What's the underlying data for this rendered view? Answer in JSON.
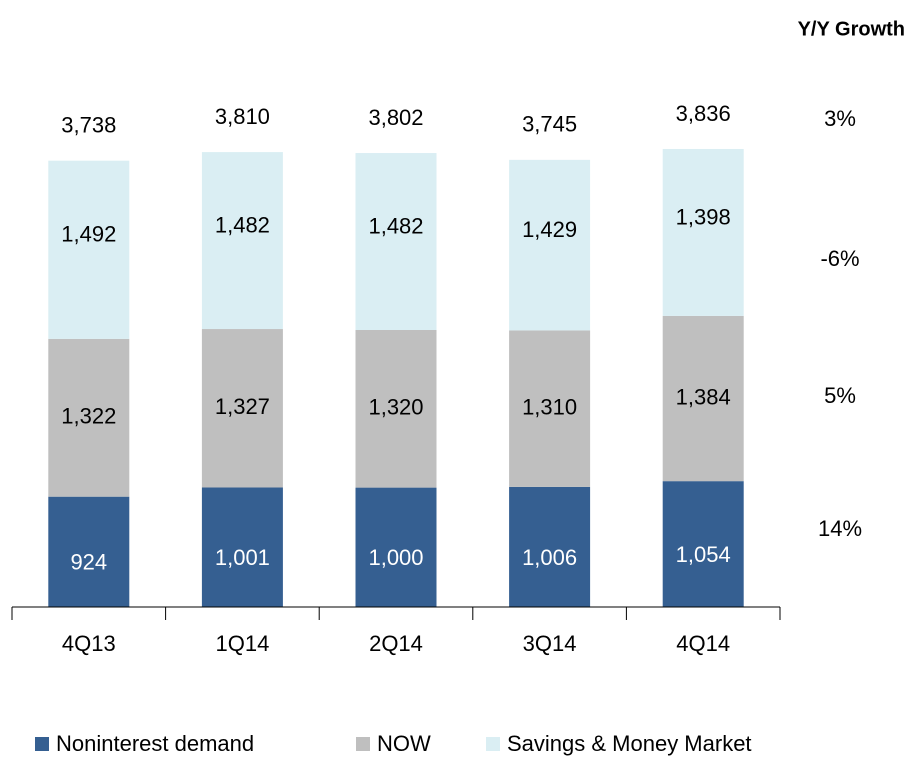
{
  "chart_data": {
    "type": "bar",
    "stacked": true,
    "categories": [
      "4Q13",
      "1Q14",
      "2Q14",
      "3Q14",
      "4Q14"
    ],
    "series": [
      {
        "name": "Noninterest demand",
        "color": "#355f91",
        "label_color": "#ffffff",
        "values": [
          924,
          1001,
          1000,
          1006,
          1054
        ],
        "value_labels": [
          "924",
          "1,001",
          "1,000",
          "1,006",
          "1,054"
        ]
      },
      {
        "name": "NOW",
        "color": "#bfbfbf",
        "label_color": "#000000",
        "values": [
          1322,
          1327,
          1320,
          1310,
          1384
        ],
        "value_labels": [
          "1,322",
          "1,327",
          "1,320",
          "1,310",
          "1,384"
        ]
      },
      {
        "name": "Savings & Money Market",
        "color": "#daeef3",
        "label_color": "#000000",
        "values": [
          1492,
          1482,
          1482,
          1429,
          1398
        ],
        "value_labels": [
          "1,492",
          "1,482",
          "1,482",
          "1,429",
          "1,398"
        ]
      }
    ],
    "totals": {
      "values": [
        3738,
        3810,
        3802,
        3745,
        3836
      ],
      "value_labels": [
        "3,738",
        "3,810",
        "3,802",
        "3,745",
        "3,836"
      ]
    },
    "growth": {
      "title": "Y/Y Growth",
      "values": [
        3,
        -6,
        5,
        14
      ],
      "value_labels": [
        "3%",
        "-6%",
        "5%",
        "14%"
      ]
    },
    "legend": "bottom"
  }
}
